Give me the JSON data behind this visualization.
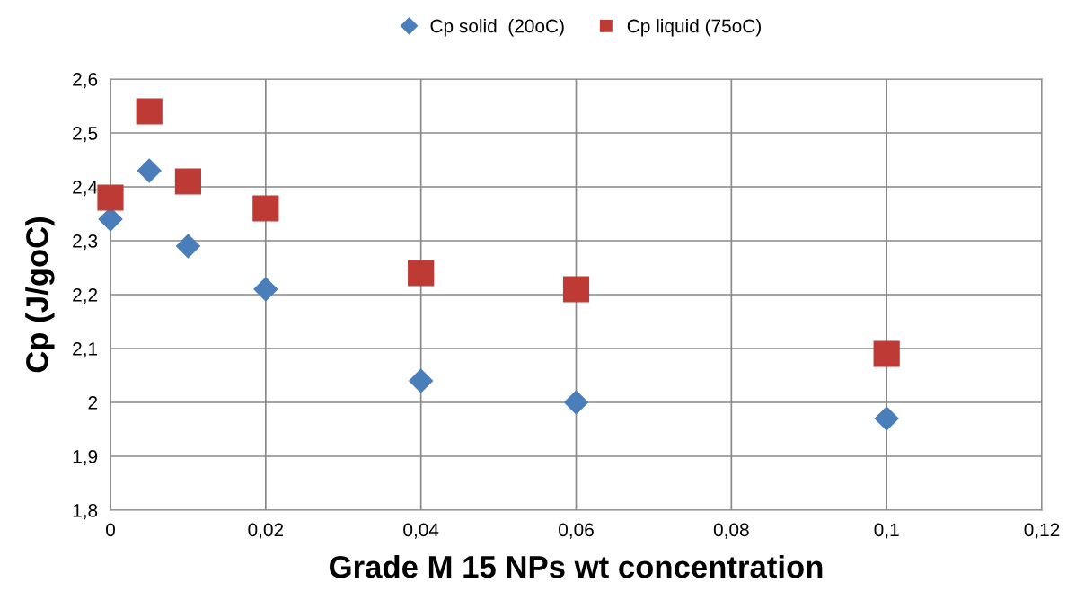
{
  "chart_data": {
    "type": "scatter",
    "xlabel": "Grade M 15 NPs wt concentration",
    "ylabel": "Cp (J/goC)",
    "series": [
      {
        "name": "Cp solid  (20oC)",
        "color": "#4a7ebb",
        "marker": "diamond",
        "x": [
          0,
          0.005,
          0.01,
          0.02,
          0.04,
          0.06,
          0.1
        ],
        "values": [
          2.34,
          2.43,
          2.29,
          2.21,
          2.04,
          2.0,
          1.97
        ]
      },
      {
        "name": "Cp liquid (75oC)",
        "color": "#be3a34",
        "marker": "square",
        "x": [
          0,
          0.005,
          0.01,
          0.02,
          0.04,
          0.06,
          0.1
        ],
        "values": [
          2.38,
          2.54,
          2.41,
          2.36,
          2.24,
          2.21,
          2.09
        ]
      }
    ],
    "xlim": [
      0,
      0.12
    ],
    "xticks": [
      0,
      {
        "value": 0.02,
        "label": "0,02"
      },
      {
        "value": 0.04,
        "label": "0,04"
      },
      {
        "value": 0.06,
        "label": "0,06"
      },
      {
        "value": 0.08,
        "label": "0,08"
      },
      {
        "value": 0.1,
        "label": "0,1"
      },
      {
        "value": 0.12,
        "label": "0,12"
      }
    ],
    "ylim": [
      1.8,
      2.6
    ],
    "yticks": [
      {
        "value": 1.8,
        "label": "1,8"
      },
      {
        "value": 1.9,
        "label": "1,9"
      },
      2,
      {
        "value": 2.1,
        "label": "2,1"
      },
      {
        "value": 2.2,
        "label": "2,2"
      },
      {
        "value": 2.3,
        "label": "2,3"
      },
      {
        "value": 2.4,
        "label": "2,4"
      },
      {
        "value": 2.5,
        "label": "2,5"
      },
      {
        "value": 2.6,
        "label": "2,6"
      }
    ],
    "grid": true,
    "legend": "top"
  }
}
